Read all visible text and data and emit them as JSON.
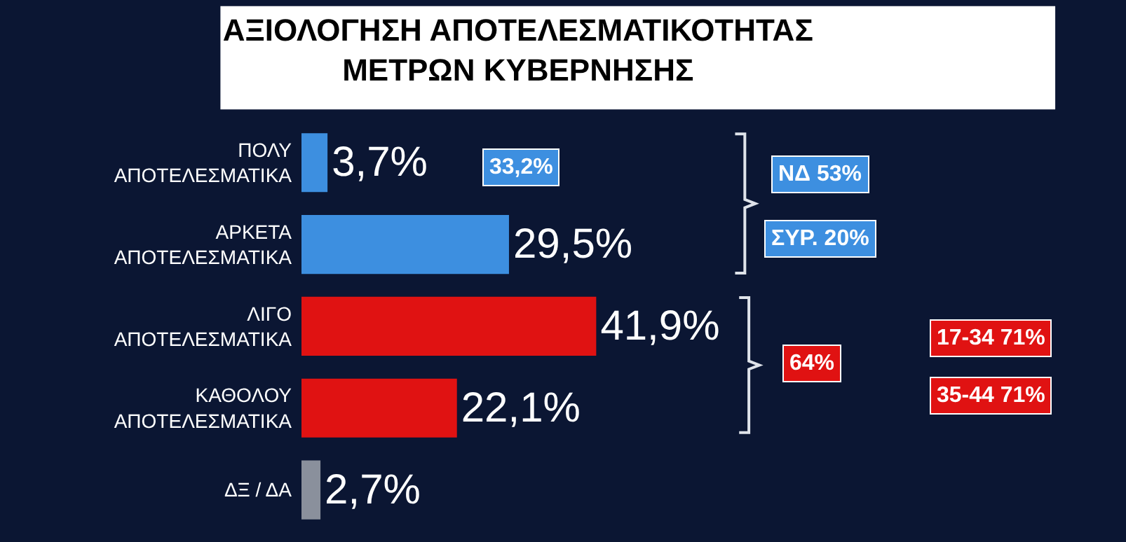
{
  "chart_data": {
    "type": "bar",
    "orientation": "horizontal",
    "title": "ΑΞΙΟΛΟΓΗΣΗ ΑΠΟΤΕΛΕΣΜΑΤΙΚΟΤΗΤΑΣ\nΜΕΤΡΩΝ ΚΥΒΕΡΝΗΣΗΣ",
    "categories": [
      "ΠΟΛΥ\nΑΠΟΤΕΛΕΣΜΑΤΙΚΑ",
      "ΑΡΚΕΤΑ\nΑΠΟΤΕΛΕΣΜΑΤΙΚΑ",
      "ΛΙΓΟ\nΑΠΟΤΕΛΕΣΜΑΤΙΚΑ",
      "ΚΑΘΟΛΟΥ\nΑΠΟΤΕΛΕΣΜΑΤΙΚΑ",
      "ΔΞ / ΔΑ"
    ],
    "values": [
      3.7,
      29.5,
      41.9,
      22.1,
      2.7
    ],
    "colors": [
      "#3d8fe0",
      "#3d8fe0",
      "#e01212",
      "#e01212",
      "#8a909c"
    ],
    "value_labels": [
      "3,7%",
      "29,5%",
      "41,9%",
      "22,1%",
      "2,7%"
    ],
    "annotations": [
      "33,2%",
      "ΝΔ 53%",
      "ΣΥΡ. 20%",
      "64%",
      "17-34 71%",
      "35-44 71%"
    ],
    "grid": false,
    "legend": false
  }
}
